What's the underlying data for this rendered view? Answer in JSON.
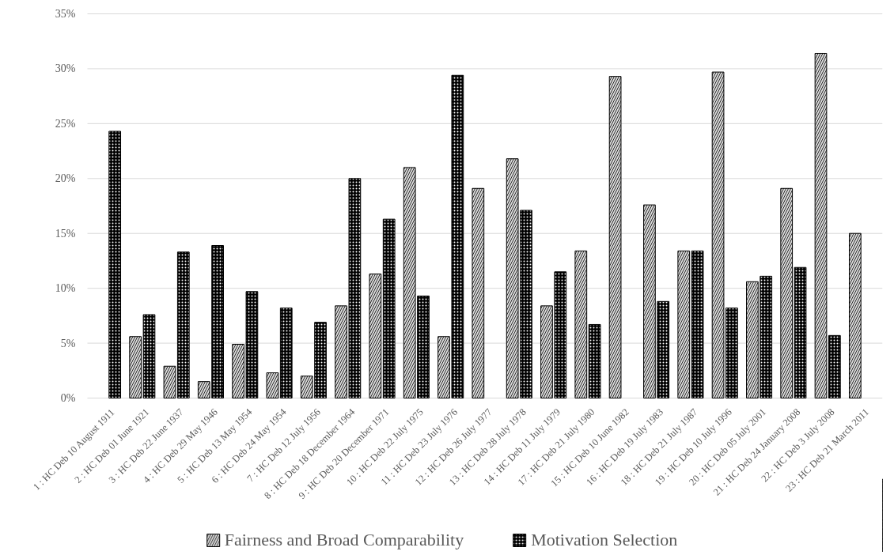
{
  "chart_data": {
    "type": "bar",
    "categories": [
      "1 : HC Deb 10 August 1911",
      "2 : HC Deb 01 June 1921",
      "3 : HC Deb 22 June 1937",
      "4 : HC Deb 29 May 1946",
      "5 : HC Deb 13 May 1954",
      "6 : HC Deb 24 May 1954",
      "7 : HC Deb 12 July 1956",
      "8 : HC Deb 18 December 1964",
      "9 : HC Deb 20 December 1971",
      "10 : HC Deb 22 July 1975",
      "11 : HC Deb 23 July 1976",
      "12 : HC Deb 26 July 1977",
      "13 : HC Deb 28 July 1978",
      "14 : HC Deb 11 July 1979",
      "17 : HC Deb 21 July 1980",
      "15 : HC Deb 10 June 1982",
      "16 : HC Deb 19 July 1983",
      "18 : HC Deb 21 July 1987",
      "19 : HC Deb 10 July 1996",
      "20 : HC Deb 05 July 2001",
      "21 : HC Deb 24 January 2008",
      "22 : HC Deb 3 July 2008",
      "23 : HC Deb 21 March 2011"
    ],
    "series": [
      {
        "name": "Fairness and Broad Comparability",
        "color": "#d9d9d9",
        "values": [
          null,
          5.6,
          2.9,
          1.5,
          4.9,
          2.3,
          2.0,
          8.4,
          11.3,
          21.0,
          5.6,
          19.1,
          21.8,
          8.4,
          13.4,
          29.3,
          17.6,
          13.4,
          29.7,
          10.6,
          19.1,
          31.4,
          15.0
        ]
      },
      {
        "name": "Motivation Selection",
        "color": "#000000",
        "values": [
          24.3,
          7.6,
          13.3,
          13.9,
          9.7,
          8.2,
          6.9,
          20.0,
          16.3,
          9.3,
          29.4,
          null,
          17.1,
          11.5,
          6.7,
          null,
          8.8,
          13.4,
          8.2,
          11.1,
          11.9,
          5.7,
          null
        ]
      }
    ],
    "ylim": [
      0,
      35
    ],
    "yticks": [
      {
        "value": 0,
        "label": "0%"
      },
      {
        "value": 5,
        "label": "5%"
      },
      {
        "value": 10,
        "label": "10%"
      },
      {
        "value": 15,
        "label": "15%"
      },
      {
        "value": 20,
        "label": "20%"
      },
      {
        "value": 25,
        "label": "25%"
      },
      {
        "value": 30,
        "label": "30%"
      },
      {
        "value": 35,
        "label": "35%"
      }
    ],
    "grid": "y",
    "legend": "bottom"
  }
}
